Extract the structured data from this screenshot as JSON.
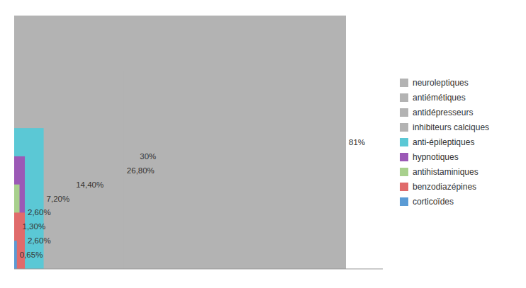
{
  "chart_data": {
    "type": "bar",
    "orientation": "horizontal",
    "categories": [
      "neuroleptiques",
      "antiémétiques",
      "antidépresseurs",
      "inhibiteurs calciques",
      "anti-épileptiques",
      "hypnotiques",
      "antihistaminiques",
      "benzodiazépines",
      "corticoïdes"
    ],
    "values": [
      81.0,
      30.0,
      26.8,
      14.4,
      7.2,
      2.6,
      1.3,
      2.6,
      0.65
    ],
    "value_labels": [
      "81%",
      "30%",
      "26,80%",
      "14,40%",
      "7,20%",
      "2,60%",
      "1,30%",
      "2,60%",
      "0,65%"
    ],
    "colors": [
      "#b3b3b3",
      "#b3b3b3",
      "#b3b3b3",
      "#b3b3b3",
      "#5bc8d5",
      "#9b59b6",
      "#a8d08d",
      "#e06b6b",
      "#5b9bd5"
    ],
    "xlim": [
      0,
      90
    ],
    "xticks": [],
    "grid": false,
    "tick_labels": false,
    "data_labels": true,
    "legend": "right"
  }
}
